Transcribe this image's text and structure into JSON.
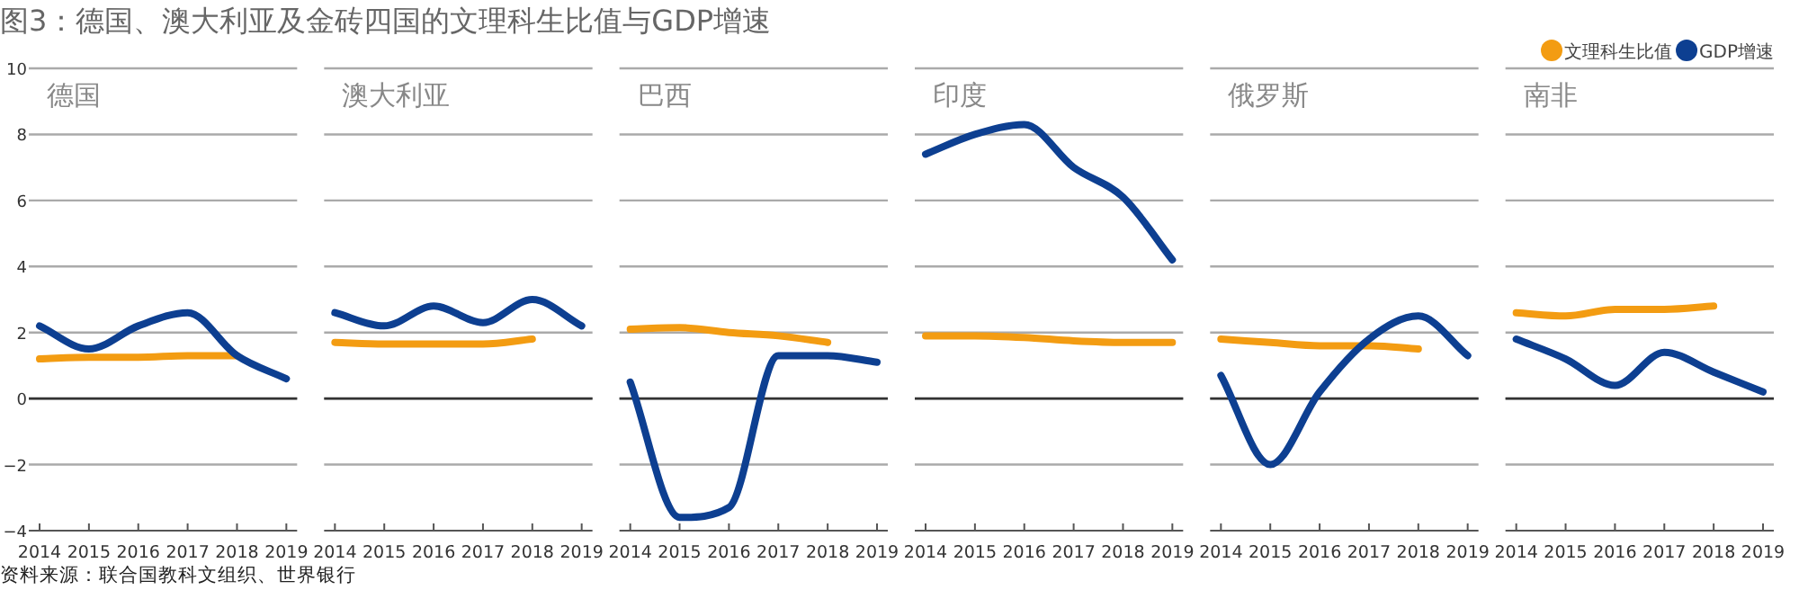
{
  "chart_data": [
    {
      "type": "line",
      "title": "德国",
      "annotations": [
        "图3：德国、澳大利亚及金砖四国的文理科生比值与GDP增速",
        "资料来源：联合国教科文组织、世界银行"
      ],
      "categories": [
        "2014",
        "2015",
        "2016",
        "2017",
        "2018",
        "2019"
      ],
      "ylim": [
        -4,
        10
      ],
      "yticks": [
        -4,
        -2,
        0,
        2,
        4,
        6,
        8,
        10
      ],
      "grid": "y",
      "ref_lines": [
        {
          "axis": "y",
          "value": 0,
          "color": "#333333"
        }
      ],
      "series": [
        {
          "color": "#f39c12",
          "values": [
            1.2,
            1.25,
            1.25,
            1.3,
            1.3,
            null
          ]
        },
        {
          "color": "#0d3f91",
          "values": [
            2.2,
            1.5,
            2.2,
            2.6,
            1.3,
            0.6
          ]
        }
      ]
    },
    {
      "type": "line",
      "title": "澳大利亚",
      "categories": [
        "2014",
        "2015",
        "2016",
        "2017",
        "2018",
        "2019"
      ],
      "ylim": [
        -4,
        10
      ],
      "yticks": [
        -4,
        -2,
        0,
        2,
        4,
        6,
        8,
        10
      ],
      "tick_labels": "x",
      "grid": "y",
      "ref_lines": [
        {
          "axis": "y",
          "value": 0,
          "color": "#333333"
        }
      ],
      "series": [
        {
          "color": "#f39c12",
          "values": [
            1.7,
            1.65,
            1.65,
            1.65,
            1.8,
            null
          ]
        },
        {
          "color": "#0d3f91",
          "values": [
            2.6,
            2.2,
            2.8,
            2.3,
            3.0,
            2.2
          ]
        }
      ]
    },
    {
      "type": "line",
      "title": "巴西",
      "categories": [
        "2014",
        "2015",
        "2016",
        "2017",
        "2018",
        "2019"
      ],
      "ylim": [
        -4,
        10
      ],
      "yticks": [
        -4,
        -2,
        0,
        2,
        4,
        6,
        8,
        10
      ],
      "tick_labels": "x",
      "grid": "y",
      "ref_lines": [
        {
          "axis": "y",
          "value": 0,
          "color": "#333333"
        }
      ],
      "series": [
        {
          "color": "#f39c12",
          "values": [
            2.1,
            2.15,
            2.0,
            1.9,
            1.7,
            null
          ]
        },
        {
          "color": "#0d3f91",
          "values": [
            0.5,
            -3.6,
            -3.3,
            1.3,
            1.3,
            1.1
          ]
        }
      ]
    },
    {
      "type": "line",
      "title": "印度",
      "categories": [
        "2014",
        "2015",
        "2016",
        "2017",
        "2018",
        "2019"
      ],
      "ylim": [
        -4,
        10
      ],
      "yticks": [
        -4,
        -2,
        0,
        2,
        4,
        6,
        8,
        10
      ],
      "tick_labels": "x",
      "grid": "y",
      "ref_lines": [
        {
          "axis": "y",
          "value": 0,
          "color": "#333333"
        }
      ],
      "series": [
        {
          "color": "#f39c12",
          "values": [
            1.9,
            1.9,
            1.85,
            1.75,
            1.7,
            1.7
          ]
        },
        {
          "color": "#0d3f91",
          "values": [
            7.4,
            8.0,
            8.3,
            7.0,
            6.1,
            4.2
          ]
        }
      ]
    },
    {
      "type": "line",
      "title": "俄罗斯",
      "categories": [
        "2014",
        "2015",
        "2016",
        "2017",
        "2018",
        "2019"
      ],
      "ylim": [
        -4,
        10
      ],
      "yticks": [
        -4,
        -2,
        0,
        2,
        4,
        6,
        8,
        10
      ],
      "tick_labels": "x",
      "grid": "y",
      "ref_lines": [
        {
          "axis": "y",
          "value": 0,
          "color": "#333333"
        }
      ],
      "series": [
        {
          "color": "#f39c12",
          "values": [
            1.8,
            1.7,
            1.6,
            1.6,
            1.5,
            null
          ]
        },
        {
          "color": "#0d3f91",
          "values": [
            0.7,
            -2.0,
            0.2,
            1.8,
            2.5,
            1.3
          ]
        }
      ]
    },
    {
      "type": "line",
      "title": "南非",
      "categories": [
        "2014",
        "2015",
        "2016",
        "2017",
        "2018",
        "2019"
      ],
      "ylim": [
        -4,
        10
      ],
      "yticks": [
        -4,
        -2,
        0,
        2,
        4,
        6,
        8,
        10
      ],
      "tick_labels": "x",
      "grid": "y",
      "legend": "top right",
      "ref_lines": [
        {
          "axis": "y",
          "value": 0,
          "color": "#333333"
        }
      ],
      "series": [
        {
          "name": "文理科生比值",
          "color": "#f39c12",
          "values": [
            2.6,
            2.5,
            2.7,
            2.7,
            2.8,
            null
          ]
        },
        {
          "name": "GDP增速",
          "color": "#0d3f91",
          "values": [
            1.8,
            1.2,
            0.4,
            1.4,
            0.8,
            0.2
          ]
        }
      ]
    }
  ]
}
